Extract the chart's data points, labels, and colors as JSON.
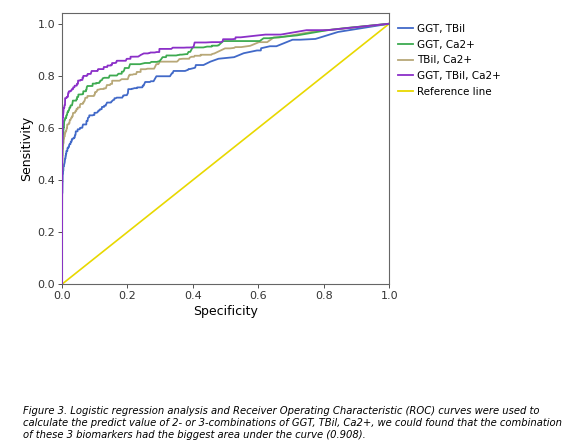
{
  "xlabel": "Specificity",
  "ylabel": "Sensitivity",
  "xlim": [
    0,
    1.0
  ],
  "ylim": [
    0,
    1.05
  ],
  "xticks": [
    0,
    0.2,
    0.4,
    0.6,
    0.8,
    1.0
  ],
  "yticks": [
    0,
    0.2,
    0.4,
    0.6,
    0.8,
    1.0
  ],
  "colors": {
    "GGT_TBil": "#4169C8",
    "GGT_Ca2": "#3DAA50",
    "TBil_Ca2": "#B8A878",
    "GGT_TBil_Ca2": "#8B2FC8",
    "reference": "#E8D800"
  },
  "legend_labels": [
    "GGT, TBil",
    "GGT, Ca2+",
    "TBil, Ca2+",
    "GGT, TBil, Ca2+",
    "Reference line"
  ],
  "caption": "Figure 3. Logistic regression analysis and Receiver Operating Characteristic (ROC) curves were used to calculate the predict value of 2- or 3-combinations of GGT, TBil, Ca2+, we could found that the combination of these 3 biomarkers had the biggest area under the curve (0.908).",
  "background_color": "#ffffff",
  "figsize": [
    5.64,
    4.44
  ],
  "dpi": 100
}
